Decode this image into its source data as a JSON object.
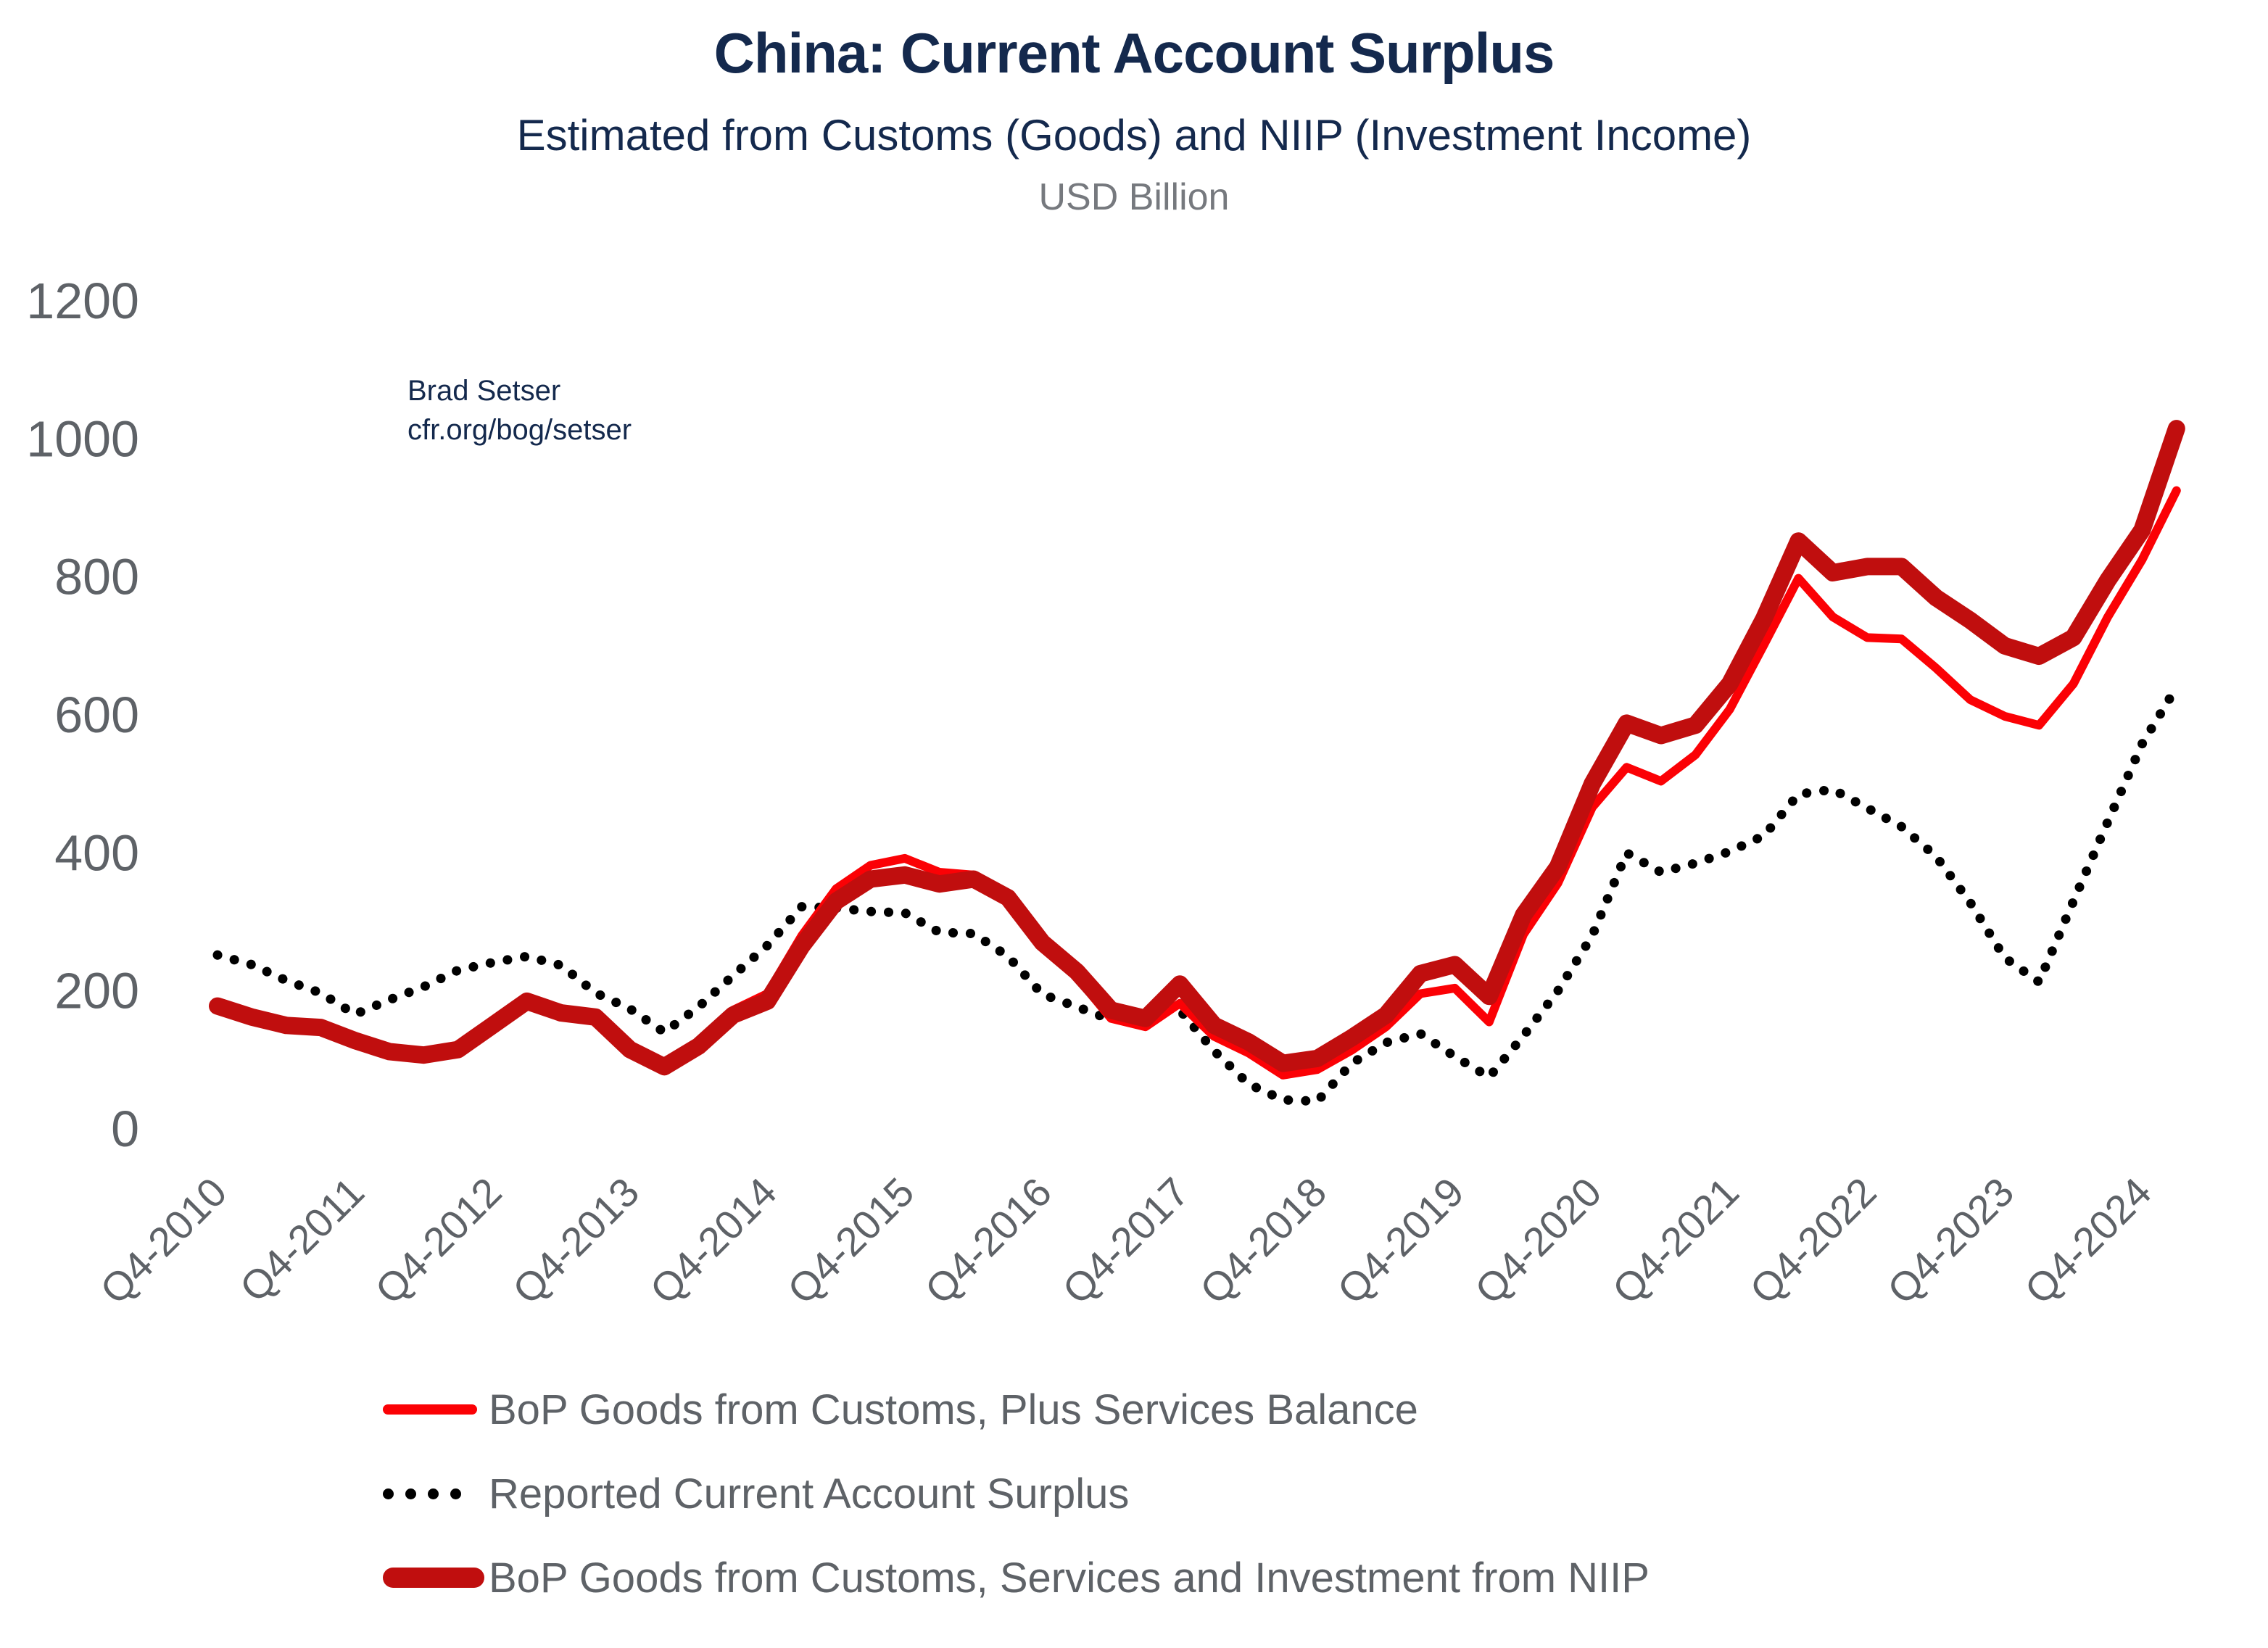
{
  "header": {
    "title": "China: Current Account Surplus",
    "subtitle": "Estimated from Customs (Goods) and NIIP (Investment Income)",
    "units": "USD Billion"
  },
  "credit": {
    "line1": "Brad Setser",
    "line2": "cfr.org/bog/setser"
  },
  "colors": {
    "navy": "#14294d",
    "axis_text": "#5e6267",
    "thin_red": "#fb0105",
    "dark_red": "#c00e0e",
    "dotted_black": "#000000"
  },
  "legend": [
    {
      "label": "BoP Goods from Customs, Plus Services Balance",
      "swatch": "thin-line",
      "color": "#fb0105"
    },
    {
      "label": "Reported Current Account Surplus",
      "swatch": "dots",
      "color": "#000000"
    },
    {
      "label": "BoP Goods from Customs, Services and Investment from NIIP",
      "swatch": "thick-line",
      "color": "#c00e0e"
    }
  ],
  "chart_data": {
    "type": "line",
    "title": "China: Current Account Surplus",
    "xlabel": "",
    "ylabel": "USD Billion",
    "ylim": [
      0,
      1200
    ],
    "grid": false,
    "legend_position": "bottom-left",
    "y_ticks": [
      0,
      200,
      400,
      600,
      800,
      1000,
      1200
    ],
    "x_tick_labels": [
      "Q4-2010",
      "Q4-2011",
      "Q4-2012",
      "Q4-2013",
      "Q4-2014",
      "Q4-2015",
      "Q4-2016",
      "Q4-2017",
      "Q4-2018",
      "Q4-2019",
      "Q4-2020",
      "Q4-2021",
      "Q4-2022",
      "Q4-2023",
      "Q4-2024"
    ],
    "x_labels": [
      "Q4-2010",
      "Q1-2011",
      "Q2-2011",
      "Q3-2011",
      "Q4-2011",
      "Q1-2012",
      "Q2-2012",
      "Q3-2012",
      "Q4-2012",
      "Q1-2013",
      "Q2-2013",
      "Q3-2013",
      "Q4-2013",
      "Q1-2014",
      "Q2-2014",
      "Q3-2014",
      "Q4-2014",
      "Q1-2015",
      "Q2-2015",
      "Q3-2015",
      "Q4-2015",
      "Q1-2016",
      "Q2-2016",
      "Q3-2016",
      "Q4-2016",
      "Q1-2017",
      "Q2-2017",
      "Q3-2017",
      "Q4-2017",
      "Q1-2018",
      "Q2-2018",
      "Q3-2018",
      "Q4-2018",
      "Q1-2019",
      "Q2-2019",
      "Q3-2019",
      "Q4-2019",
      "Q1-2020",
      "Q2-2020",
      "Q3-2020",
      "Q4-2020",
      "Q1-2021",
      "Q2-2021",
      "Q3-2021",
      "Q4-2021",
      "Q1-2022",
      "Q2-2022",
      "Q3-2022",
      "Q4-2022",
      "Q1-2023",
      "Q2-2023",
      "Q3-2023",
      "Q4-2023",
      "Q1-2024",
      "Q2-2024",
      "Q3-2024",
      "Q4-2024",
      "Q1-2025"
    ],
    "series": [
      {
        "name": "Reported Current Account Surplus",
        "color": "#000000",
        "style": "dotted",
        "width": 13,
        "values": [
          252,
          238,
          215,
          197,
          166,
          187,
          206,
          230,
          241,
          250,
          237,
          197,
          174,
          140,
          177,
          222,
          266,
          322,
          320,
          315,
          313,
          285,
          283,
          250,
          195,
          177,
          158,
          170,
          172,
          113,
          65,
          42,
          40,
          95,
          125,
          138,
          105,
          75,
          135,
          200,
          280,
          400,
          372,
          385,
          402,
          425,
          485,
          492,
          465,
          438,
          395,
          328,
          248,
          213,
          330,
          445,
          558,
          640
        ]
      },
      {
        "name": "BoP Goods from Customs, Plus Services Balance",
        "color": "#fb0105",
        "style": "solid",
        "width": 12,
        "values": [
          180,
          164,
          152,
          149,
          130,
          114,
          109,
          117,
          153,
          188,
          170,
          164,
          117,
          93,
          124,
          172,
          196,
          280,
          348,
          382,
          392,
          372,
          368,
          338,
          262,
          220,
          160,
          148,
          182,
          134,
          110,
          78,
          86,
          114,
          148,
          196,
          204,
          155,
          282,
          356,
          466,
          524,
          504,
          542,
          608,
          702,
          798,
          742,
          712,
          710,
          668,
          622,
          598,
          585,
          645,
          742,
          825,
          925
        ]
      },
      {
        "name": "BoP Goods from Customs, Services and Investment from NIIP",
        "color": "#c00e0e",
        "style": "solid",
        "width": 24,
        "values": [
          178,
          162,
          150,
          147,
          128,
          112,
          107,
          115,
          150,
          185,
          168,
          162,
          115,
          90,
          120,
          165,
          185,
          265,
          330,
          362,
          368,
          355,
          362,
          335,
          270,
          228,
          172,
          160,
          210,
          150,
          126,
          95,
          102,
          132,
          165,
          225,
          238,
          192,
          310,
          380,
          500,
          588,
          570,
          585,
          645,
          740,
          852,
          806,
          815,
          815,
          770,
          737,
          700,
          685,
          712,
          795,
          868,
          1015
        ]
      }
    ]
  }
}
